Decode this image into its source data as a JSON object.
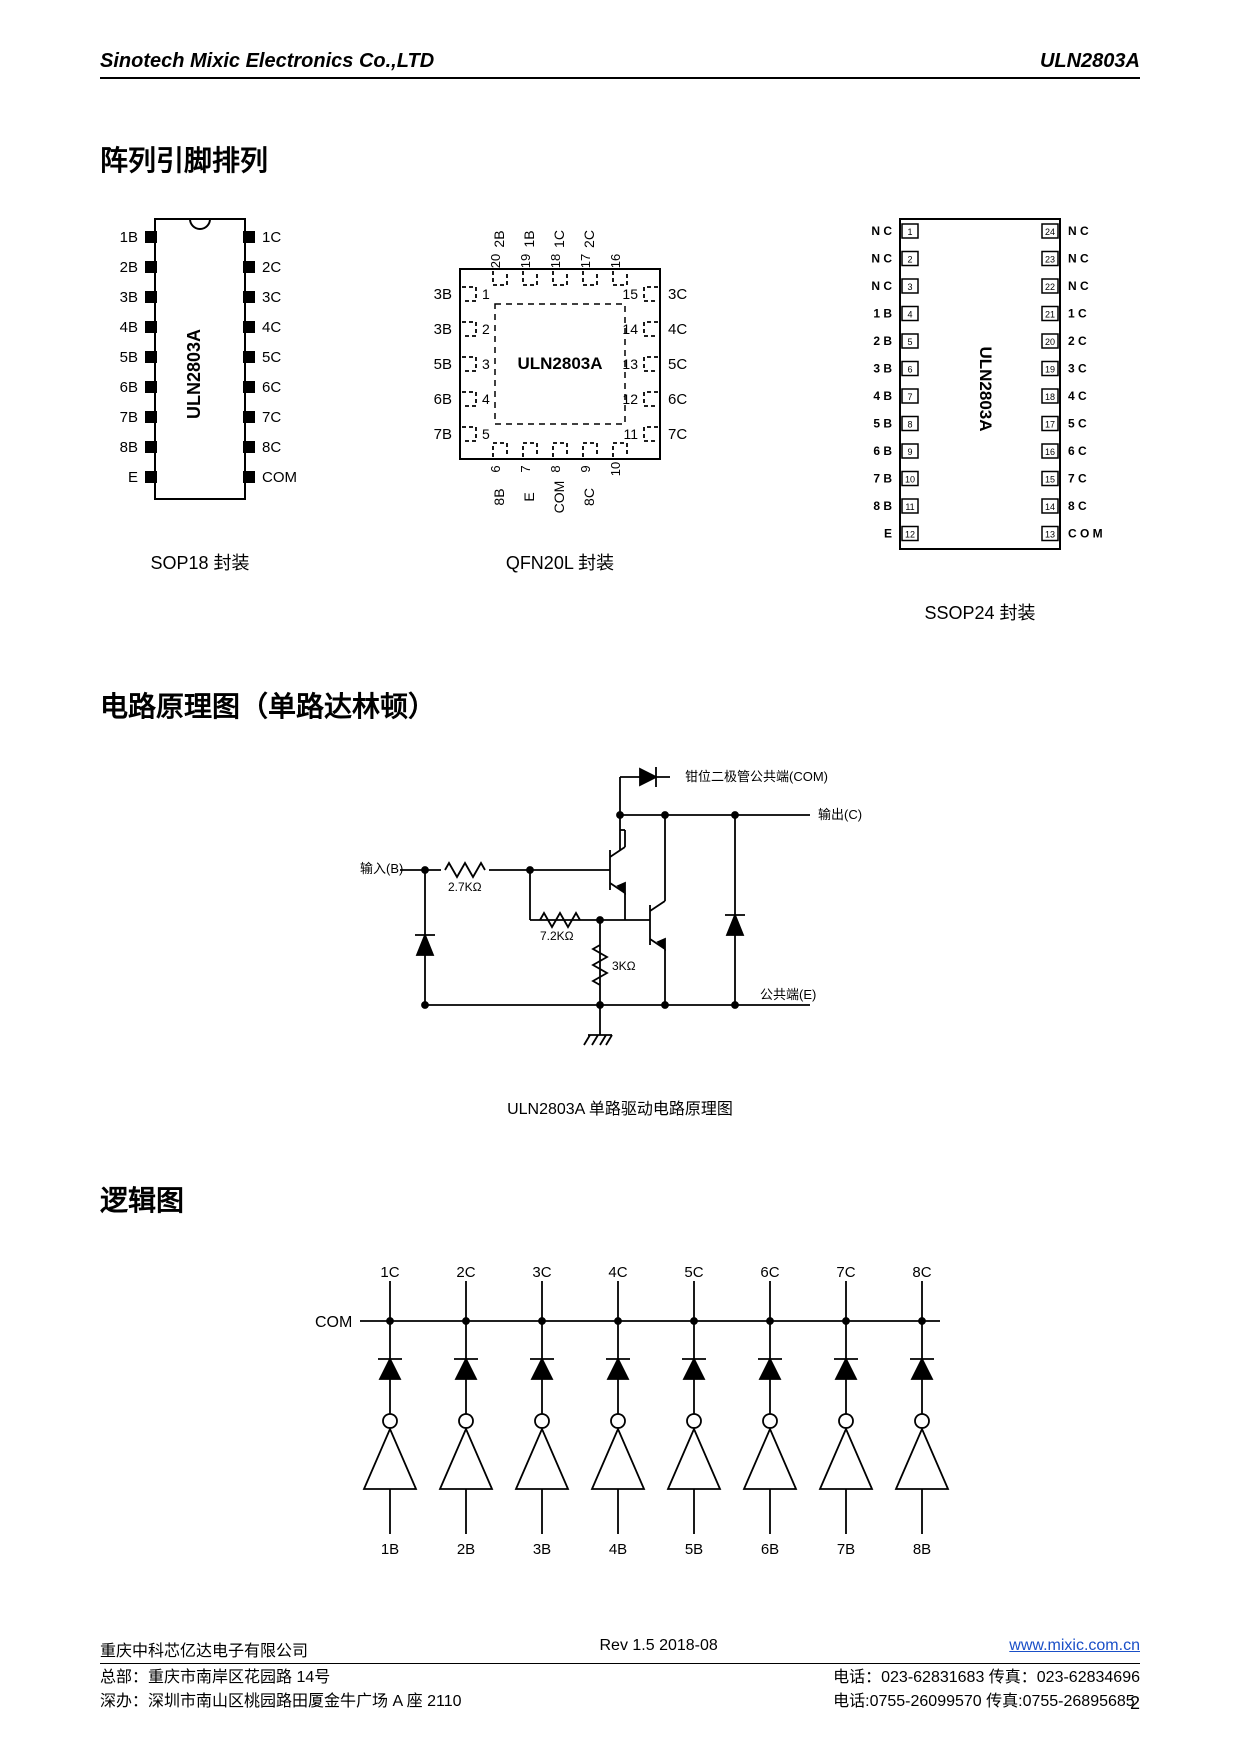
{
  "header": {
    "company": "Sinotech  Mixic  Electronics  Co.,LTD",
    "part": "ULN2803A"
  },
  "section1": "阵列引脚排列",
  "section2": "电路原理图（单路达林顿）",
  "section3": "逻辑图",
  "packages": {
    "sop18": {
      "label": "SOP18 封装",
      "chip_text": "ULN2803A",
      "left": [
        "1B",
        "2B",
        "3B",
        "4B",
        "5B",
        "6B",
        "7B",
        "8B",
        "E"
      ],
      "right": [
        "1C",
        "2C",
        "3C",
        "4C",
        "5C",
        "6C",
        "7C",
        "8C",
        "COM"
      ]
    },
    "qfn20l": {
      "label": "QFN20L 封装",
      "chip_text": "ULN2803A",
      "left_labels": [
        "3B",
        "3B",
        "5B",
        "6B",
        "7B"
      ],
      "left_nums": [
        "1",
        "2",
        "3",
        "4",
        "5"
      ],
      "right_labels": [
        "3C",
        "4C",
        "5C",
        "6C",
        "7C"
      ],
      "right_nums": [
        "15",
        "14",
        "13",
        "12",
        "11"
      ],
      "top_labels": [
        "2B",
        "1B",
        "1C",
        "2C"
      ],
      "top_nums": [
        "20",
        "19",
        "18",
        "17",
        "16"
      ],
      "bottom_labels": [
        "8B",
        "E",
        "COM",
        "8C"
      ],
      "bottom_nums": [
        "6",
        "7",
        "8",
        "9",
        "10"
      ]
    },
    "ssop24": {
      "label": "SSOP24 封装",
      "chip_text": "ULN2803A",
      "left": [
        "N C",
        "N C",
        "N C",
        "1 B",
        "2 B",
        "3 B",
        "4 B",
        "5 B",
        "6 B",
        "7 B",
        "8 B",
        "E"
      ],
      "left_nums": [
        "1",
        "2",
        "3",
        "4",
        "5",
        "6",
        "7",
        "8",
        "9",
        "10",
        "11",
        "12"
      ],
      "right": [
        "N C",
        "N C",
        "N C",
        "1 C",
        "2 C",
        "3 C",
        "4 C",
        "5 C",
        "6 C",
        "7 C",
        "8 C",
        "C O M"
      ],
      "right_nums": [
        "24",
        "23",
        "22",
        "21",
        "20",
        "19",
        "18",
        "17",
        "16",
        "15",
        "14",
        "13"
      ]
    }
  },
  "schematic": {
    "caption": "ULN2803A 单路驱动电路原理图",
    "labels": {
      "com": "钳位二极管公共端(COM)",
      "out": "输出(C)",
      "in": "输入(B)",
      "gnd": "公共端(E)",
      "r1": "2.7KΩ",
      "r2": "7.2KΩ",
      "r3": "3KΩ"
    }
  },
  "logic": {
    "com": "COM",
    "top": [
      "1C",
      "2C",
      "3C",
      "4C",
      "5C",
      "6C",
      "7C",
      "8C"
    ],
    "bottom": [
      "1B",
      "2B",
      "3B",
      "4B",
      "5B",
      "6B",
      "7B",
      "8B"
    ]
  },
  "footer": {
    "company_cn": "重庆中科芯亿达电子有限公司",
    "rev": "Rev 1.5   2018-08",
    "url": "www.mixic.com.cn",
    "addr1": "总部：重庆市南岸区花园路 14号",
    "addr2": "深办：深圳市南山区桃园路田厦金牛广场 A 座 2110",
    "tel1": "电话：023-62831683  传真：023-62834696",
    "tel2": "电话:0755-26099570  传真:0755-26895685",
    "page": "2"
  },
  "colors": {
    "line": "#000000",
    "bg": "#ffffff"
  }
}
